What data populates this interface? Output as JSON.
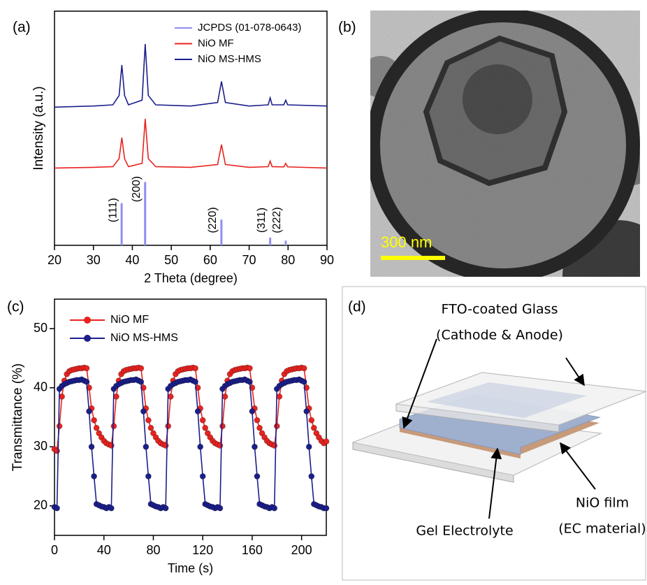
{
  "panels": [
    "(a)",
    "(b)",
    "(c)",
    "(d)"
  ],
  "image_b": {
    "scale_bar": "300 nm"
  },
  "diagram_d": {
    "glass_label": "FTO-coated Glass",
    "glass_sub": "(Cathode & Anode)",
    "film_label": "NiO film",
    "film_sub": "(EC material)",
    "gel_label": "Gel Electrolyte"
  },
  "chart_data": [
    {
      "type": "line",
      "xlabel": "2 Theta (degree)",
      "ylabel": "Intensity (a.u.)",
      "xlim": [
        20,
        90
      ],
      "xticks": [
        20,
        30,
        40,
        50,
        60,
        70,
        80,
        90
      ],
      "ylim": [
        0,
        100
      ],
      "legend": "upper right",
      "series": [
        {
          "name": "JCPDS (01-078-0643)",
          "color": "#8f8ff0",
          "style": "stick",
          "x": [
            37.25,
            43.28,
            62.88,
            75.4,
            79.4
          ],
          "values": [
            18,
            27,
            11,
            3.3,
            2
          ],
          "peak_labels": [
            "(111)",
            "(200)",
            "(220)",
            "(311)",
            "(222)"
          ]
        },
        {
          "name": "NiO MF",
          "color": "#e8231f",
          "x": [
            20,
            30,
            35,
            36.6,
            37.3,
            38,
            39,
            42.5,
            43.3,
            44.1,
            46,
            55,
            61.9,
            62.9,
            63.9,
            70,
            74.9,
            75.4,
            75.9,
            78.9,
            79.4,
            79.9,
            90
          ],
          "values": [
            33,
            33.3,
            33.6,
            37,
            46,
            37,
            33.6,
            35,
            54,
            37,
            33.6,
            33.3,
            34.5,
            43,
            34.5,
            33.3,
            33.6,
            36,
            33.6,
            33.5,
            35,
            33.5,
            33
          ]
        },
        {
          "name": "NiO MS-HMS",
          "color": "#1b1f8a",
          "x": [
            20,
            30,
            35,
            36.6,
            37.3,
            38,
            39,
            42.5,
            43.3,
            44.1,
            46,
            55,
            61.9,
            62.9,
            63.9,
            70,
            74.9,
            75.4,
            75.9,
            78.9,
            79.4,
            79.9,
            90
          ],
          "values": [
            59,
            59.5,
            60,
            64,
            77,
            64,
            60,
            62,
            86,
            64,
            60,
            59.5,
            61,
            70,
            61,
            59.5,
            60,
            63,
            60,
            60,
            62,
            60,
            59.5
          ]
        }
      ]
    },
    {
      "type": "line",
      "xlabel": "Time (s)",
      "ylabel": "Transmittance (%)",
      "xlim": [
        0,
        220
      ],
      "xticks": [
        0,
        40,
        80,
        120,
        160,
        200
      ],
      "ylim": [
        15,
        55
      ],
      "yticks": [
        20,
        30,
        40,
        50
      ],
      "legend": "upper left",
      "series": [
        {
          "name": "NiO MF",
          "color": "#e8231f",
          "marker": "circle",
          "x": [
            0,
            2,
            4,
            6,
            8,
            10,
            12,
            14,
            16,
            18,
            20,
            22,
            24,
            26,
            28,
            30,
            32,
            34,
            36,
            38,
            40,
            42,
            44,
            46,
            48,
            50,
            52,
            54,
            56,
            58,
            60,
            62,
            64,
            66,
            68,
            70,
            72,
            74,
            76,
            78,
            80,
            82,
            84,
            86,
            88,
            90,
            92,
            94,
            96,
            98,
            100,
            102,
            104,
            106,
            108,
            110,
            112,
            114,
            116,
            118,
            120,
            122,
            124,
            126,
            128,
            130,
            132,
            134,
            136,
            138,
            140,
            142,
            144,
            146,
            148,
            150,
            152,
            154,
            156,
            158,
            160,
            162,
            164,
            166,
            168,
            170,
            172,
            174,
            176,
            178,
            180,
            182,
            184,
            186,
            188,
            190,
            192,
            194,
            196,
            198,
            200,
            202,
            204,
            206,
            208,
            210,
            212,
            214,
            216,
            218,
            220
          ],
          "values": [
            29.6,
            29.3,
            33.5,
            38.5,
            41.2,
            42.3,
            42.8,
            43.0,
            43.1,
            43.2,
            43.3,
            43.3,
            43.4,
            43.3,
            40.0,
            36.5,
            34.5,
            33.2,
            32.3,
            31.6,
            31.0,
            30.6,
            30.4,
            30.2,
            33.5,
            38.5,
            41.2,
            42.3,
            42.8,
            43.0,
            43.1,
            43.2,
            43.3,
            43.3,
            43.4,
            43.3,
            40.0,
            36.5,
            34.5,
            33.2,
            32.3,
            31.6,
            31.0,
            30.6,
            30.4,
            30.2,
            33.5,
            38.5,
            41.2,
            42.3,
            42.8,
            43.0,
            43.1,
            43.2,
            43.3,
            43.3,
            43.4,
            43.3,
            40.0,
            36.5,
            34.5,
            33.2,
            32.3,
            31.6,
            31.0,
            30.6,
            30.4,
            30.2,
            33.5,
            38.5,
            41.2,
            42.3,
            42.8,
            43.0,
            43.1,
            43.2,
            43.3,
            43.3,
            43.4,
            43.3,
            40.0,
            36.5,
            34.5,
            33.2,
            32.3,
            31.6,
            31.0,
            30.6,
            30.4,
            30.2,
            33.5,
            38.5,
            41.2,
            42.3,
            42.8,
            43.0,
            43.1,
            43.2,
            43.3,
            43.3,
            43.4,
            43.3,
            40.0,
            36.5,
            34.5,
            33.2,
            32.3,
            31.6,
            31.0,
            30.6,
            30.9
          ]
        },
        {
          "name": "NiO MS-HMS",
          "color": "#1b1f8a",
          "marker": "circle",
          "x": [
            0,
            2,
            4,
            6,
            8,
            10,
            12,
            14,
            16,
            18,
            20,
            22,
            24,
            26,
            28,
            30,
            32,
            34,
            36,
            38,
            40,
            42,
            44,
            46,
            48,
            50,
            52,
            54,
            56,
            58,
            60,
            62,
            64,
            66,
            68,
            70,
            72,
            74,
            76,
            78,
            80,
            82,
            84,
            86,
            88,
            90,
            92,
            94,
            96,
            98,
            100,
            102,
            104,
            106,
            108,
            110,
            112,
            114,
            116,
            118,
            120,
            122,
            124,
            126,
            128,
            130,
            132,
            134,
            136,
            138,
            140,
            142,
            144,
            146,
            148,
            150,
            152,
            154,
            156,
            158,
            160,
            162,
            164,
            166,
            168,
            170,
            172,
            174,
            176,
            178,
            180,
            182,
            184,
            186,
            188,
            190,
            192,
            194,
            196,
            198,
            200,
            202,
            204,
            206,
            208,
            210,
            212,
            214,
            216,
            218,
            220
          ],
          "values": [
            19.8,
            19.6,
            39.8,
            40.3,
            40.6,
            40.8,
            41.0,
            41.1,
            41.2,
            41.3,
            41.3,
            41.4,
            41.2,
            41.0,
            36.0,
            30.0,
            25.0,
            20.3,
            20.1,
            19.9,
            19.8,
            19.6,
            19.8,
            19.6,
            39.8,
            40.3,
            40.6,
            40.8,
            41.0,
            41.1,
            41.2,
            41.3,
            41.3,
            41.4,
            41.2,
            41.0,
            36.0,
            30.0,
            25.0,
            20.3,
            20.1,
            19.9,
            19.8,
            19.6,
            19.8,
            19.6,
            39.8,
            40.3,
            40.6,
            40.8,
            41.0,
            41.1,
            41.2,
            41.3,
            41.3,
            41.4,
            41.2,
            41.0,
            36.0,
            30.0,
            25.0,
            20.3,
            20.1,
            19.9,
            19.8,
            19.6,
            19.8,
            19.6,
            39.8,
            40.3,
            40.6,
            40.8,
            41.0,
            41.1,
            41.2,
            41.3,
            41.3,
            41.4,
            41.2,
            41.0,
            36.0,
            30.0,
            25.0,
            20.3,
            20.1,
            19.9,
            19.8,
            19.6,
            19.8,
            19.6,
            39.8,
            40.3,
            40.6,
            40.8,
            41.0,
            41.1,
            41.2,
            41.3,
            41.3,
            41.4,
            41.2,
            41.0,
            36.0,
            30.0,
            25.0,
            20.3,
            20.1,
            19.9,
            19.8,
            19.6,
            19.6
          ]
        }
      ]
    }
  ]
}
